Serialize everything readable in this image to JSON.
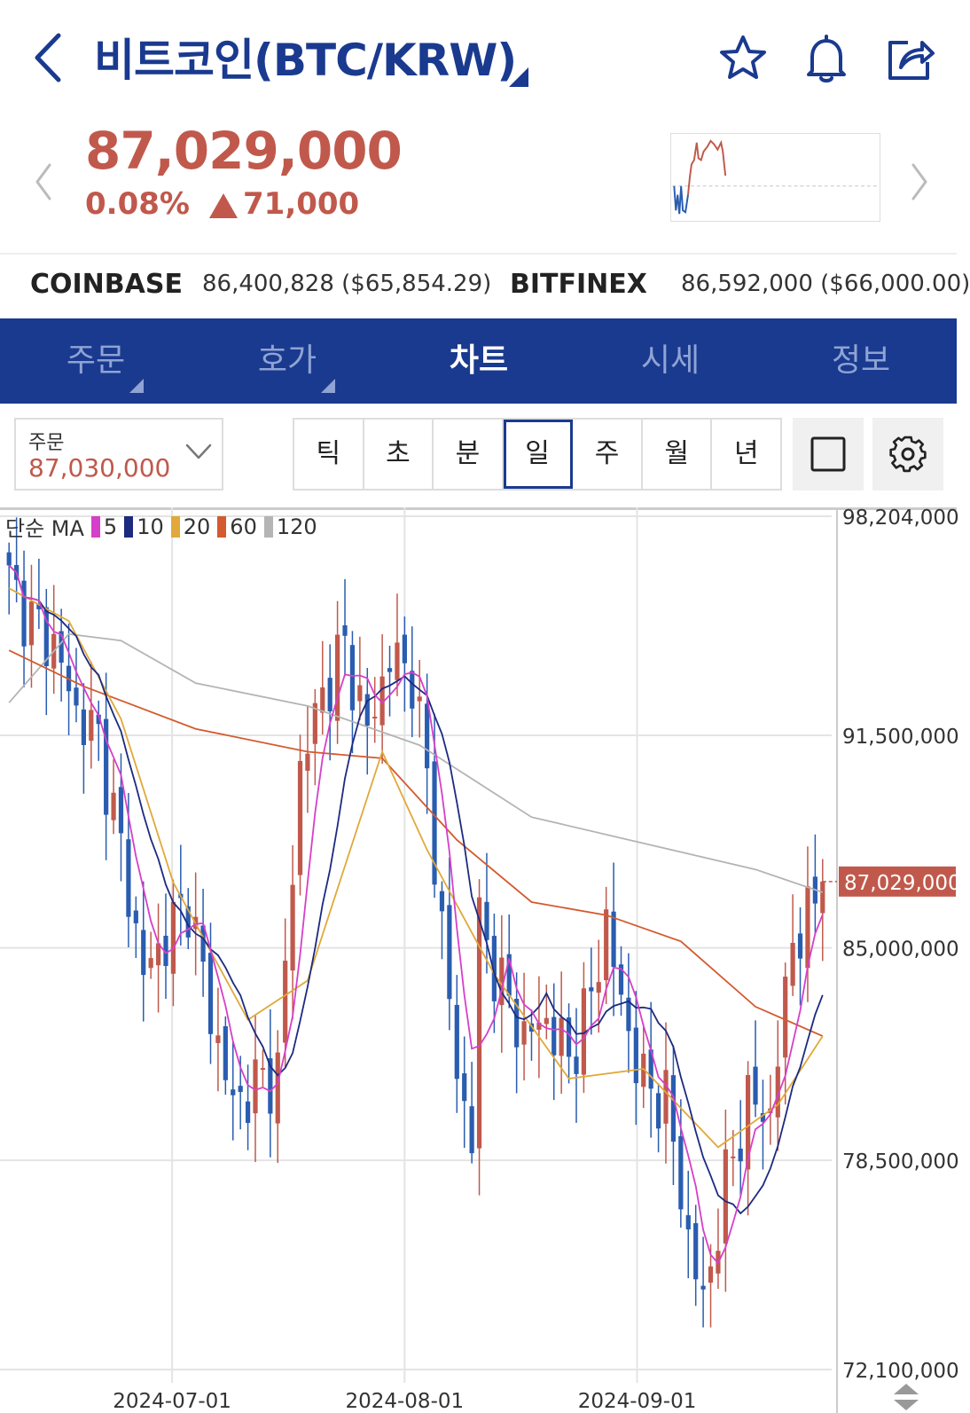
{
  "header": {
    "title": "비트코인(BTC/KRW)"
  },
  "price": {
    "current": "87,029,000",
    "change_pct": "0.08%",
    "change_amt": "71,000",
    "direction": "up",
    "up_color": "#c0594c",
    "down_color": "#2a5db0"
  },
  "exchanges": [
    {
      "name": "COINBASE",
      "value": "86,400,828 ($65,854.29)"
    },
    {
      "name": "BITFINEX",
      "value": "86,592,000 ($66,000.00)"
    }
  ],
  "tabs": [
    {
      "label": "주문",
      "has_caret": true,
      "active": false
    },
    {
      "label": "호가",
      "has_caret": true,
      "active": false
    },
    {
      "label": "차트",
      "has_caret": false,
      "active": true
    },
    {
      "label": "시세",
      "has_caret": false,
      "active": false
    },
    {
      "label": "정보",
      "has_caret": false,
      "active": false
    }
  ],
  "order": {
    "label": "주문",
    "value": "87,030,000"
  },
  "periods": [
    {
      "label": "틱",
      "active": false
    },
    {
      "label": "초",
      "active": false
    },
    {
      "label": "분",
      "active": false
    },
    {
      "label": "일",
      "active": true
    },
    {
      "label": "주",
      "active": false
    },
    {
      "label": "월",
      "active": false
    },
    {
      "label": "년",
      "active": false
    }
  ],
  "icons": {
    "back": "chevron-left-icon",
    "favorite": "star-icon",
    "alert": "bell-icon",
    "share": "share-icon",
    "fullscreen": "square-icon",
    "settings": "gear-icon"
  },
  "chart_data": {
    "type": "candlestick",
    "legend": {
      "label": "단순 MA",
      "periods": [
        {
          "value": "5",
          "color": "#d63fc9"
        },
        {
          "value": "10",
          "color": "#1c2a80"
        },
        {
          "value": "20",
          "color": "#e0a93a"
        },
        {
          "value": "60",
          "color": "#d45a2f"
        },
        {
          "value": "120",
          "color": "#b4b4b4"
        }
      ]
    },
    "y_ticks": [
      "98,204,000",
      "91,500,000",
      "85,000,000",
      "78,500,000",
      "72,100,000"
    ],
    "y_tick_values": [
      98204000,
      91500000,
      85000000,
      78500000,
      72100000
    ],
    "ylim": [
      72100000,
      98204000
    ],
    "x_ticks": [
      "2024-07-01",
      "2024-08-01",
      "2024-09-01"
    ],
    "x_range": [
      "2024-06-09",
      "2024-09-26"
    ],
    "current_price_label": "87,029,000",
    "current_price": 87029000,
    "colors": {
      "up": "#c0594c",
      "down": "#2a5db0",
      "grid": "#e4e4e4"
    },
    "approx_ma": {
      "ma120": [
        [
          0,
          92500000
        ],
        [
          8,
          94600000
        ],
        [
          15,
          94400000
        ],
        [
          25,
          93100000
        ],
        [
          40,
          92400000
        ],
        [
          55,
          91200000
        ],
        [
          70,
          89000000
        ],
        [
          85,
          88200000
        ],
        [
          100,
          87400000
        ],
        [
          109,
          86700000
        ]
      ],
      "ma60": [
        [
          0,
          94100000
        ],
        [
          10,
          93000000
        ],
        [
          25,
          91700000
        ],
        [
          40,
          91000000
        ],
        [
          50,
          90800000
        ],
        [
          60,
          88300000
        ],
        [
          70,
          86400000
        ],
        [
          80,
          86000000
        ],
        [
          90,
          85200000
        ],
        [
          100,
          83200000
        ],
        [
          109,
          82300000
        ]
      ],
      "ma20": [
        [
          0,
          96000000
        ],
        [
          8,
          95000000
        ],
        [
          15,
          92000000
        ],
        [
          22,
          87000000
        ],
        [
          32,
          82800000
        ],
        [
          40,
          84000000
        ],
        [
          50,
          91000000
        ],
        [
          56,
          88000000
        ],
        [
          65,
          84200000
        ],
        [
          75,
          81000000
        ],
        [
          85,
          81300000
        ],
        [
          95,
          78900000
        ],
        [
          103,
          80200000
        ],
        [
          109,
          82300000
        ]
      ]
    }
  }
}
